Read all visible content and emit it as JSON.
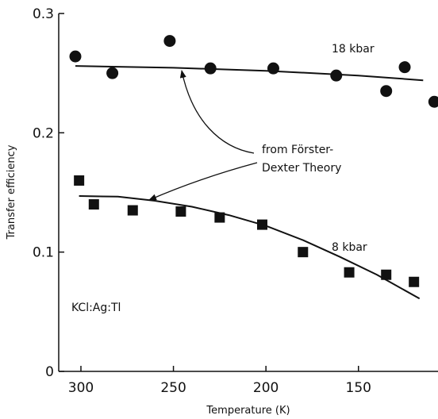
{
  "chart_data": {
    "type": "scatter",
    "xlabel": "Temperature (K)",
    "ylabel": "Transfer efficiency",
    "xlim": [
      312,
      107
    ],
    "ylim": [
      0,
      0.3
    ],
    "x_reversed": true,
    "grid": false,
    "legend": "none",
    "x_ticks": [
      300,
      250,
      200,
      150
    ],
    "x_tick_labels": [
      "300",
      "250",
      "200",
      "150"
    ],
    "y_ticks": [
      0,
      0.1,
      0.2,
      0.3
    ],
    "y_tick_labels": [
      "0",
      "0.1",
      "0.2",
      "0.3"
    ],
    "series": [
      {
        "label": "18 kbar",
        "marker": "circle",
        "x": [
          303,
          283,
          252,
          230,
          196,
          162,
          135,
          125,
          109
        ],
        "y": [
          0.264,
          0.25,
          0.277,
          0.254,
          0.254,
          0.248,
          0.235,
          0.255,
          0.226
        ],
        "fit_x": [
          303,
          250,
          200,
          150,
          115
        ],
        "fit_y": [
          0.256,
          0.2545,
          0.252,
          0.248,
          0.244
        ]
      },
      {
        "label": "8 kbar",
        "marker": "square",
        "x": [
          301,
          293,
          272,
          246,
          225,
          202,
          180,
          155,
          135,
          120
        ],
        "y": [
          0.16,
          0.14,
          0.135,
          0.134,
          0.129,
          0.123,
          0.1,
          0.083,
          0.081,
          0.075
        ],
        "fit_x": [
          301,
          280,
          260,
          240,
          220,
          200,
          180,
          160,
          140,
          117
        ],
        "fit_y": [
          0.147,
          0.1465,
          0.143,
          0.138,
          0.131,
          0.122,
          0.11,
          0.096,
          0.081,
          0.061
        ]
      }
    ],
    "annotations": {
      "series_labels": [
        "18 kbar",
        "8 kbar"
      ],
      "theory_line1": "from Förster-",
      "theory_line2": "Dexter Theory",
      "sample": "KCl:Ag:Tl"
    }
  }
}
